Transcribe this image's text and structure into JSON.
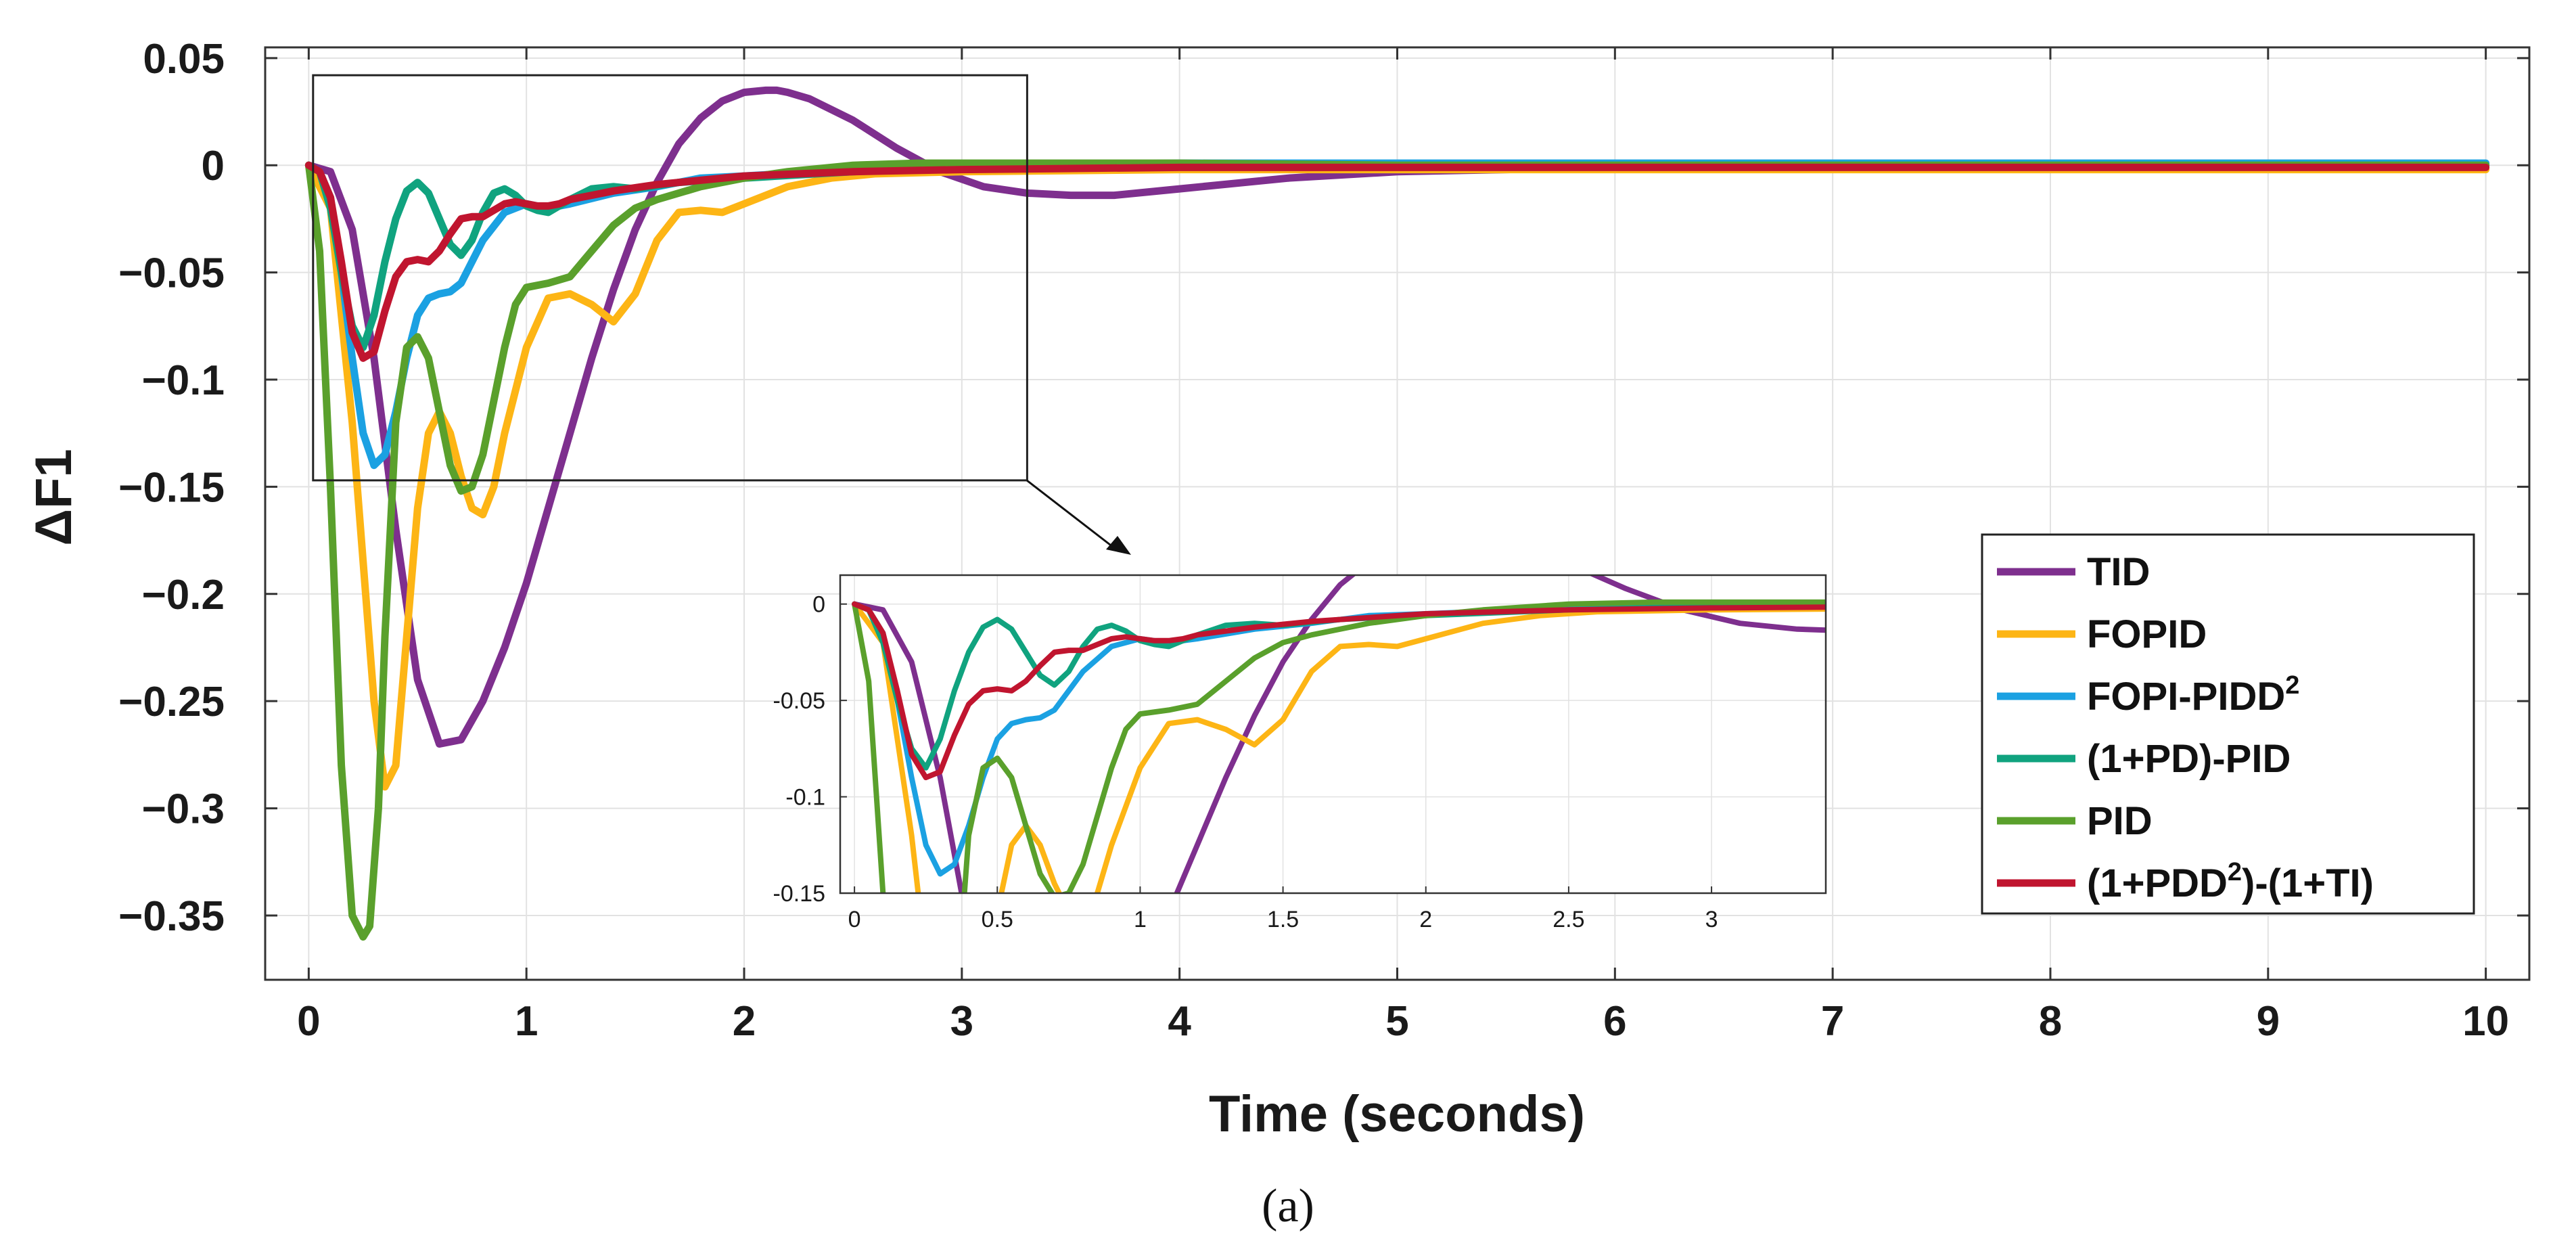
{
  "caption": "(a)",
  "chart_data": {
    "type": "line",
    "title": "",
    "xlabel": "Time (seconds)",
    "ylabel": "ΔF1",
    "xlim": [
      -0.2,
      10.2
    ],
    "ylim": [
      -0.38,
      0.055
    ],
    "xticks": [
      0,
      1,
      2,
      3,
      4,
      5,
      6,
      7,
      8,
      9,
      10
    ],
    "xtick_labels": [
      "0",
      "1",
      "2",
      "3",
      "4",
      "5",
      "6",
      "7",
      "8",
      "9",
      "10"
    ],
    "yticks": [
      0.05,
      0,
      -0.05,
      -0.1,
      -0.15,
      -0.2,
      -0.25,
      -0.3,
      -0.35
    ],
    "ytick_labels": [
      "0.05",
      "0",
      "−0.05",
      "−0.1",
      "−0.15",
      "−0.2",
      "−0.25",
      "−0.3",
      "−0.35"
    ],
    "grid": true,
    "legend_position": "right",
    "series": [
      {
        "name": "TID",
        "label_main": "TID",
        "label_sup": "",
        "label_tail": "",
        "color": "#7E2F8E",
        "x": [
          0,
          0.1,
          0.2,
          0.3,
          0.4,
          0.5,
          0.6,
          0.7,
          0.8,
          0.9,
          1.0,
          1.1,
          1.2,
          1.3,
          1.4,
          1.5,
          1.6,
          1.7,
          1.8,
          1.9,
          2.0,
          2.1,
          2.15,
          2.2,
          2.3,
          2.5,
          2.7,
          2.9,
          3.1,
          3.3,
          3.5,
          3.7,
          4.0,
          4.5,
          5.0,
          5.5,
          6,
          7,
          8,
          9,
          10
        ],
        "y": [
          0,
          -0.003,
          -0.03,
          -0.09,
          -0.17,
          -0.24,
          -0.27,
          -0.268,
          -0.25,
          -0.225,
          -0.195,
          -0.16,
          -0.125,
          -0.09,
          -0.058,
          -0.03,
          -0.008,
          0.01,
          0.022,
          0.03,
          0.034,
          0.035,
          0.035,
          0.034,
          0.031,
          0.021,
          0.008,
          -0.003,
          -0.01,
          -0.013,
          -0.014,
          -0.014,
          -0.011,
          -0.006,
          -0.003,
          -0.002,
          -0.001,
          0,
          0,
          0,
          0
        ]
      },
      {
        "name": "FOPID",
        "label_main": "FOPID",
        "label_sup": "",
        "label_tail": "",
        "color": "#FDB515",
        "x": [
          0,
          0.1,
          0.2,
          0.3,
          0.35,
          0.4,
          0.45,
          0.5,
          0.55,
          0.6,
          0.65,
          0.7,
          0.75,
          0.8,
          0.85,
          0.9,
          1.0,
          1.1,
          1.2,
          1.3,
          1.4,
          1.5,
          1.6,
          1.7,
          1.8,
          1.9,
          2.0,
          2.2,
          2.4,
          2.6,
          3,
          4,
          5,
          6,
          7,
          8,
          9,
          10
        ],
        "y": [
          0,
          -0.02,
          -0.12,
          -0.25,
          -0.29,
          -0.28,
          -0.22,
          -0.16,
          -0.125,
          -0.115,
          -0.125,
          -0.145,
          -0.16,
          -0.163,
          -0.15,
          -0.125,
          -0.085,
          -0.062,
          -0.06,
          -0.065,
          -0.073,
          -0.06,
          -0.035,
          -0.022,
          -0.021,
          -0.022,
          -0.018,
          -0.01,
          -0.006,
          -0.004,
          -0.003,
          -0.002,
          -0.002,
          -0.002,
          -0.002,
          -0.002,
          -0.002,
          -0.002
        ]
      },
      {
        "name": "FOPI-PIDD2",
        "label_main": "FOPI-PIDD",
        "label_sup": "2",
        "label_tail": "",
        "color": "#1BA1E2",
        "x": [
          0,
          0.05,
          0.1,
          0.15,
          0.2,
          0.25,
          0.3,
          0.35,
          0.4,
          0.45,
          0.5,
          0.55,
          0.6,
          0.65,
          0.7,
          0.8,
          0.9,
          1.0,
          1.1,
          1.2,
          1.4,
          1.6,
          1.8,
          2.0,
          2.5,
          3,
          4,
          5,
          6,
          7,
          8,
          9,
          10
        ],
        "y": [
          0,
          -0.003,
          -0.015,
          -0.05,
          -0.09,
          -0.125,
          -0.14,
          -0.135,
          -0.115,
          -0.09,
          -0.07,
          -0.062,
          -0.06,
          -0.059,
          -0.055,
          -0.035,
          -0.022,
          -0.018,
          -0.02,
          -0.018,
          -0.013,
          -0.01,
          -0.006,
          -0.005,
          -0.002,
          0,
          0.001,
          0.001,
          0.001,
          0.001,
          0.001,
          0.001,
          0.001
        ]
      },
      {
        "name": "(1+PD)-PID",
        "label_main": "(1+PD)-PID",
        "label_sup": "",
        "label_tail": "",
        "color": "#10A37F",
        "x": [
          0,
          0.05,
          0.1,
          0.15,
          0.2,
          0.25,
          0.3,
          0.35,
          0.4,
          0.45,
          0.5,
          0.55,
          0.6,
          0.65,
          0.7,
          0.75,
          0.8,
          0.85,
          0.9,
          0.95,
          1.0,
          1.05,
          1.1,
          1.15,
          1.2,
          1.3,
          1.4,
          1.5,
          1.7,
          2.0,
          2.5,
          3,
          4,
          5,
          6,
          7,
          8,
          9,
          10
        ],
        "y": [
          0,
          -0.003,
          -0.02,
          -0.05,
          -0.075,
          -0.085,
          -0.07,
          -0.045,
          -0.025,
          -0.012,
          -0.008,
          -0.013,
          -0.025,
          -0.037,
          -0.042,
          -0.035,
          -0.022,
          -0.013,
          -0.011,
          -0.014,
          -0.019,
          -0.021,
          -0.022,
          -0.019,
          -0.016,
          -0.011,
          -0.01,
          -0.011,
          -0.008,
          -0.006,
          -0.003,
          -0.001,
          0,
          0,
          0,
          0,
          0,
          0,
          0
        ]
      },
      {
        "name": "PID",
        "label_main": "PID",
        "label_sup": "",
        "label_tail": "",
        "color": "#5AA02C",
        "x": [
          0,
          0.05,
          0.1,
          0.15,
          0.2,
          0.25,
          0.28,
          0.32,
          0.35,
          0.4,
          0.45,
          0.5,
          0.55,
          0.6,
          0.65,
          0.7,
          0.75,
          0.8,
          0.85,
          0.9,
          0.95,
          1.0,
          1.1,
          1.2,
          1.3,
          1.4,
          1.5,
          1.6,
          1.8,
          2.0,
          2.2,
          2.5,
          2.8,
          3.2,
          4,
          5,
          6,
          7,
          8,
          9,
          10
        ],
        "y": [
          0,
          -0.04,
          -0.15,
          -0.28,
          -0.35,
          -0.36,
          -0.355,
          -0.3,
          -0.22,
          -0.12,
          -0.085,
          -0.08,
          -0.09,
          -0.115,
          -0.14,
          -0.152,
          -0.15,
          -0.135,
          -0.11,
          -0.085,
          -0.065,
          -0.057,
          -0.055,
          -0.052,
          -0.04,
          -0.028,
          -0.02,
          -0.016,
          -0.01,
          -0.006,
          -0.003,
          0,
          0.001,
          0.001,
          0.001,
          0,
          0,
          0,
          0,
          0,
          0
        ]
      },
      {
        "name": "(1+PDD2)-(1+TI)",
        "label_main": "(1+PDD",
        "label_sup": "2",
        "label_tail": ")-(1+TI)",
        "color": "#C0152F",
        "x": [
          0,
          0.05,
          0.1,
          0.15,
          0.2,
          0.25,
          0.3,
          0.35,
          0.4,
          0.45,
          0.5,
          0.55,
          0.6,
          0.65,
          0.7,
          0.75,
          0.8,
          0.85,
          0.9,
          0.95,
          1.0,
          1.05,
          1.1,
          1.15,
          1.2,
          1.3,
          1.4,
          1.6,
          1.8,
          2.0,
          2.5,
          3,
          4,
          5,
          6,
          7,
          8,
          9,
          10
        ],
        "y": [
          0,
          -0.003,
          -0.015,
          -0.045,
          -0.078,
          -0.09,
          -0.087,
          -0.068,
          -0.052,
          -0.045,
          -0.044,
          -0.045,
          -0.04,
          -0.032,
          -0.025,
          -0.024,
          -0.024,
          -0.021,
          -0.018,
          -0.017,
          -0.018,
          -0.019,
          -0.019,
          -0.018,
          -0.016,
          -0.014,
          -0.012,
          -0.009,
          -0.007,
          -0.005,
          -0.003,
          -0.002,
          -0.001,
          -0.001,
          -0.001,
          -0.001,
          -0.001,
          -0.001,
          -0.001
        ]
      }
    ],
    "inset": {
      "xlim": [
        -0.05,
        3.4
      ],
      "ylim": [
        -0.15,
        0.015
      ],
      "xticks": [
        0,
        0.5,
        1,
        1.5,
        2,
        2.5,
        3
      ],
      "xtick_labels": [
        "0",
        "0.5",
        "1",
        "1.5",
        "2",
        "2.5",
        "3"
      ],
      "yticks": [
        0,
        -0.05,
        -0.1,
        -0.15
      ],
      "ytick_labels": [
        "0",
        "-0.05",
        "-0.1",
        "-0.15"
      ],
      "zoom_region": {
        "x": [
          0.02,
          3.3
        ],
        "y": [
          -0.147,
          0.042
        ]
      }
    }
  }
}
